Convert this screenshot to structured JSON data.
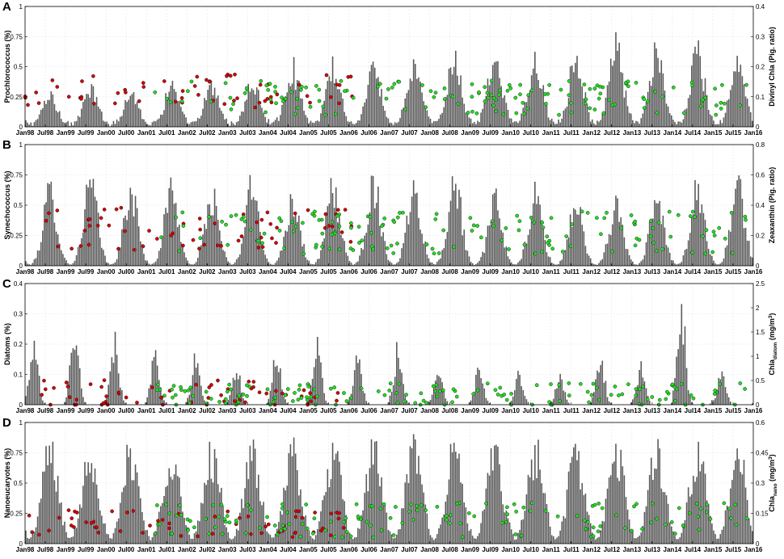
{
  "chart_data": [
    {
      "panel": "A",
      "type": "bar",
      "ylabel_left": "Prochlorococcus (%)",
      "ylabel_right": "Divinyl Chla (Pig. ratio)",
      "left_ticks": [
        "0",
        "0.25",
        "0.5",
        "0.75",
        "1"
      ],
      "right_ticks": [
        "0",
        "0.1",
        "0.2",
        "0.3",
        "0.4"
      ],
      "ylim_left": [
        0,
        1
      ],
      "ylim_right": [
        0,
        0.4
      ],
      "bar_peaks": [
        0.3,
        0.35,
        0.33,
        0.4,
        0.38,
        0.42,
        0.58,
        0.6,
        0.58,
        0.6,
        0.68,
        0.72,
        0.64,
        0.7,
        0.78,
        0.72,
        0.74,
        0.64,
        0.7,
        0.64,
        0.7,
        0.62,
        0.52,
        0.42,
        0.6
      ],
      "series": [
        {
          "name": "red",
          "color": "#d40000",
          "range_years": [
            0.0,
            8.1
          ],
          "level": 0.25,
          "spread": 0.18
        },
        {
          "name": "green",
          "color": "#1ee01e",
          "range_years": [
            3.2,
            17.9
          ],
          "level": 0.2,
          "spread": 0.18
        }
      ]
    },
    {
      "panel": "B",
      "type": "bar",
      "ylabel_left": "Synechococcus (%)",
      "ylabel_right": "Zeaxanthin (Pig. ratio)",
      "left_ticks": [
        "0",
        "0.25",
        "0.5",
        "0.75",
        "1"
      ],
      "right_ticks": [
        "0",
        "0.2",
        "0.4",
        "0.6",
        "0.8"
      ],
      "ylim_left": [
        0,
        1
      ],
      "ylim_right": [
        0,
        0.8
      ],
      "bar_peaks": [
        0.75,
        0.84,
        0.75,
        0.8,
        0.7,
        0.8,
        0.7,
        0.78,
        0.82,
        0.8,
        0.86,
        0.65,
        0.7,
        0.62,
        0.62,
        0.66,
        0.8,
        0.78,
        0.7,
        0.74,
        0.86,
        0.82,
        0.8,
        0.78
      ],
      "series": [
        {
          "name": "red",
          "color": "#d40000",
          "range_years": [
            0.3,
            8.1
          ],
          "level": 0.25,
          "spread": 0.22
        },
        {
          "name": "green",
          "color": "#1ee01e",
          "range_years": [
            3.2,
            17.9
          ],
          "level": 0.22,
          "spread": 0.22
        }
      ]
    },
    {
      "panel": "C",
      "type": "bar",
      "ylabel_left": "Diatoms (%)",
      "ylabel_right": "Chla",
      "ylabel_right_sub": "diatom",
      "ylabel_right_unit": " (mg/m",
      "ylabel_right_sup": "3",
      "ylabel_right_end": ")",
      "left_ticks": [
        "0",
        "0.1",
        "0.2",
        "0.3",
        "0.4"
      ],
      "right_ticks": [
        "0",
        "0.5",
        "1",
        "1.5",
        "2",
        "2.5"
      ],
      "ylim_left": [
        0,
        0.4
      ],
      "ylim_right": [
        0,
        2.5
      ],
      "bar_peaks": [
        0.25,
        0.3,
        0.25,
        0.2,
        0.18,
        0.15,
        0.2,
        0.24,
        0.18,
        0.22,
        0.15,
        0.15,
        0.12,
        0.12,
        0.2,
        0.15,
        0.4,
        0.12,
        0.1,
        0.1,
        0.14,
        0.1,
        0.12,
        0.29
      ],
      "series": [
        {
          "name": "red",
          "color": "#d40000",
          "range_years": [
            0.0,
            8.1
          ],
          "level": 0.02,
          "spread": 0.06
        },
        {
          "name": "green",
          "color": "#1ee01e",
          "range_years": [
            3.2,
            17.9
          ],
          "level": 0.02,
          "spread": 0.05
        }
      ]
    },
    {
      "panel": "D",
      "type": "bar",
      "ylabel_left": "Nanoeucaryotes (%)",
      "ylabel_right": "Chla",
      "ylabel_right_sub": "nano",
      "ylabel_right_unit": " (mg/m",
      "ylabel_right_sup": "3",
      "ylabel_right_end": ")",
      "left_ticks": [
        "0",
        "0.25",
        "0.5",
        "0.75",
        "1"
      ],
      "right_ticks": [
        "0",
        "0.15",
        "0.3",
        "0.45",
        "0.6"
      ],
      "ylim_left": [
        0,
        1
      ],
      "ylim_right": [
        0,
        0.6
      ],
      "bar_peaks": [
        0.95,
        0.95,
        0.93,
        0.94,
        0.92,
        0.9,
        0.94,
        0.92,
        0.95,
        0.96,
        0.95,
        0.9,
        0.95,
        0.92,
        0.93,
        0.94,
        0.92,
        0.94,
        0.93,
        0.92,
        0.94,
        0.95,
        0.92,
        0.95
      ],
      "series": [
        {
          "name": "red",
          "color": "#d40000",
          "range_years": [
            0.0,
            8.1
          ],
          "level": 0.12,
          "spread": 0.15
        },
        {
          "name": "green",
          "color": "#1ee01e",
          "range_years": [
            3.2,
            17.9
          ],
          "level": 0.15,
          "spread": 0.18
        }
      ]
    }
  ],
  "x_tick_labels": [
    "Jan98",
    "Jul98",
    "Jan99",
    "Jul99",
    "Jan00",
    "Jul00",
    "Jan01",
    "Jul01",
    "Jan02",
    "Jul02",
    "Jan03",
    "Jul03",
    "Jan04",
    "Jul04",
    "Jan05",
    "Jul05",
    "Jan06",
    "Jul06",
    "Jan07",
    "Jul07",
    "Jan08",
    "Jul08",
    "Jan09",
    "Jul09",
    "Jan10",
    "Jul10",
    "Jan11",
    "Jul11",
    "Jan12",
    "Jul12",
    "Jan13",
    "Jul13",
    "Jan14",
    "Jul14",
    "Jan15",
    "Jul15",
    "Jan16"
  ],
  "x_range": [
    "Jan98",
    "Jan16"
  ],
  "colors": {
    "bars": "#5a5a5a",
    "red_points": "#d40000",
    "green_points": "#1ee01e",
    "point_edge": "#222222"
  },
  "grid": true
}
